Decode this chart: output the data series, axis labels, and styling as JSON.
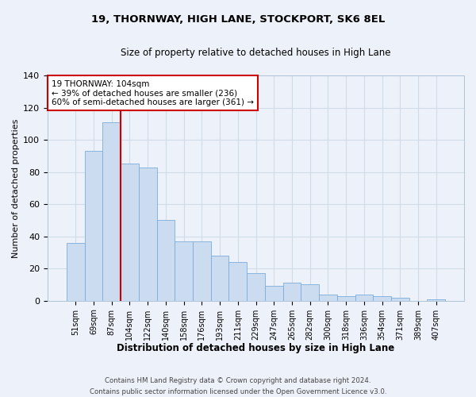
{
  "title": "19, THORNWAY, HIGH LANE, STOCKPORT, SK6 8EL",
  "subtitle": "Size of property relative to detached houses in High Lane",
  "xlabel": "Distribution of detached houses by size in High Lane",
  "ylabel": "Number of detached properties",
  "bar_labels": [
    "51sqm",
    "69sqm",
    "87sqm",
    "104sqm",
    "122sqm",
    "140sqm",
    "158sqm",
    "176sqm",
    "193sqm",
    "211sqm",
    "229sqm",
    "247sqm",
    "265sqm",
    "282sqm",
    "300sqm",
    "318sqm",
    "336sqm",
    "354sqm",
    "371sqm",
    "389sqm",
    "407sqm"
  ],
  "bar_values": [
    36,
    93,
    111,
    85,
    83,
    50,
    37,
    37,
    28,
    24,
    17,
    9,
    11,
    10,
    4,
    3,
    4,
    3,
    2,
    0,
    1
  ],
  "bar_color": "#ccdcf0",
  "bar_edge_color": "#7aacda",
  "vline_x": 2.5,
  "vline_color": "#cc0000",
  "ylim": [
    0,
    140
  ],
  "yticks": [
    0,
    20,
    40,
    60,
    80,
    100,
    120,
    140
  ],
  "annotation_title": "19 THORNWAY: 104sqm",
  "annotation_line1": "← 39% of detached houses are smaller (236)",
  "annotation_line2": "60% of semi-detached houses are larger (361) →",
  "annotation_box_color": "#cc0000",
  "footer_line1": "Contains HM Land Registry data © Crown copyright and database right 2024.",
  "footer_line2": "Contains public sector information licensed under the Open Government Licence v3.0.",
  "background_color": "#edf2fa",
  "grid_color": "#d0dbe8"
}
